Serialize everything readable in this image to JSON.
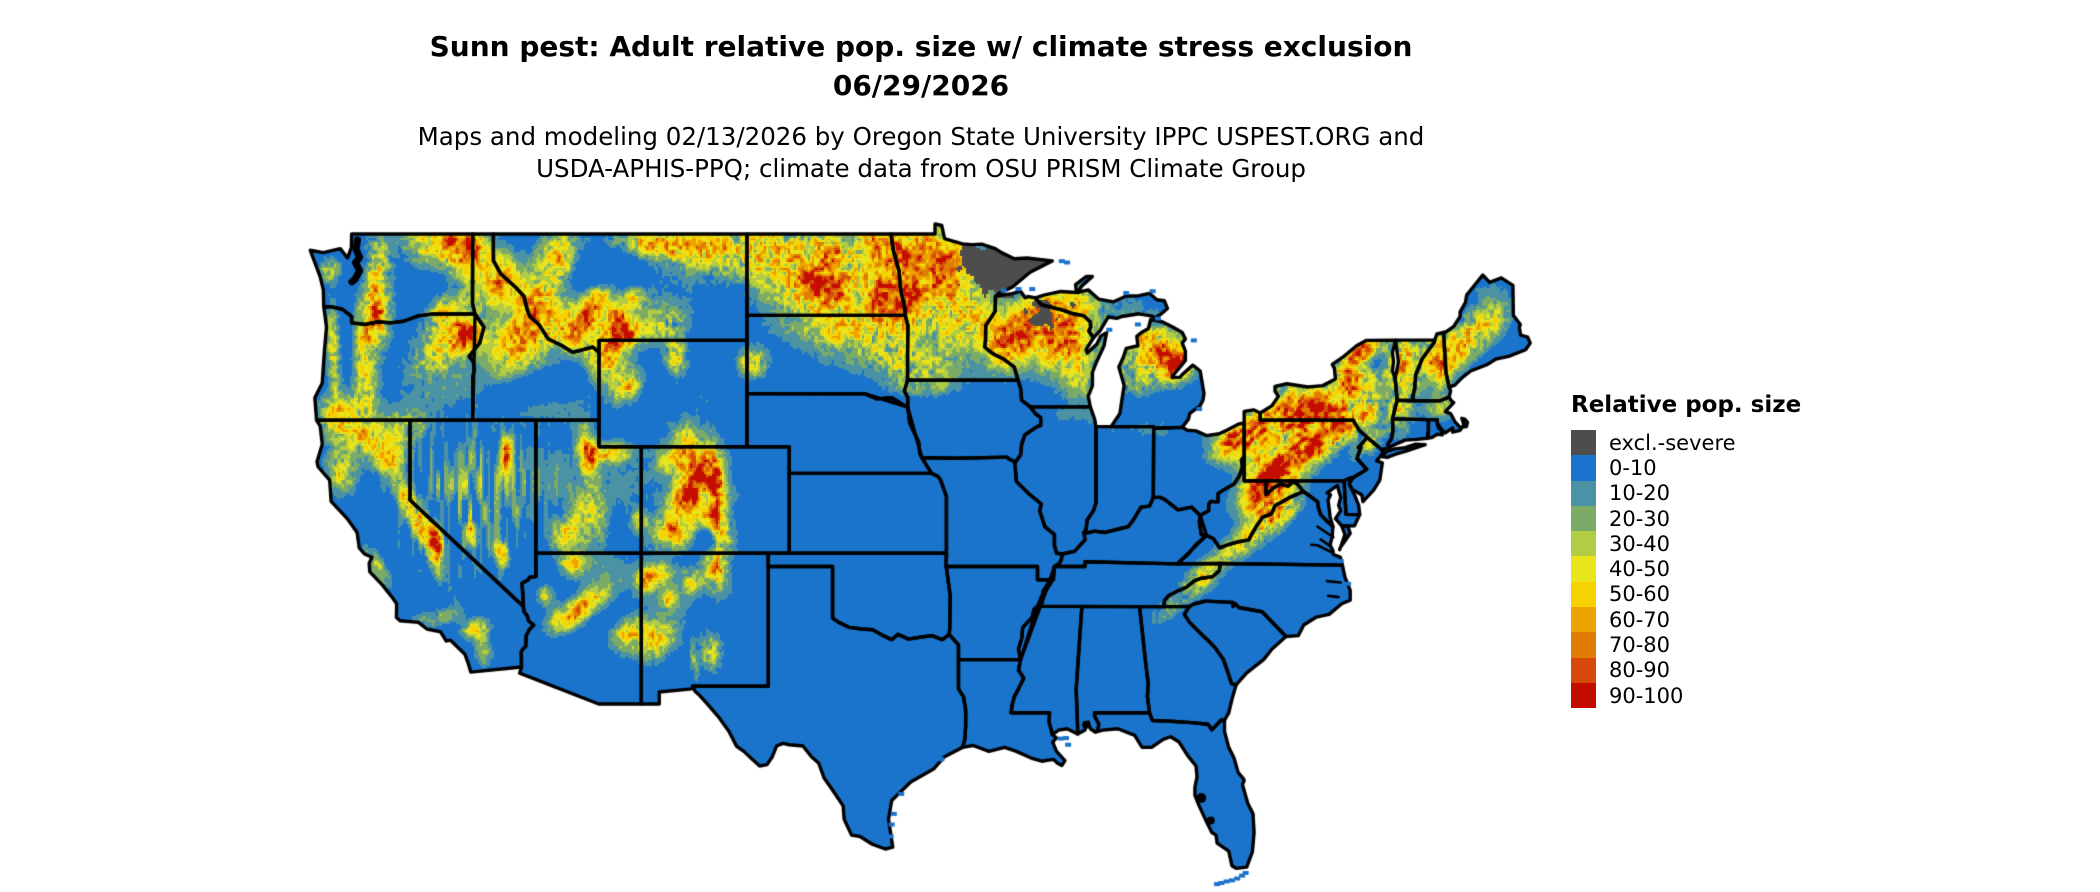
{
  "header": {
    "title": "Sunn pest: Adult relative pop. size w/ climate stress exclusion",
    "date": "06/29/2026",
    "caption_line1": "Maps and modeling 02/13/2026 by Oregon State University IPPC USPEST.ORG and",
    "caption_line2": "USDA-APHIS-PPQ; climate data from OSU PRISM Climate Group"
  },
  "legend": {
    "title": "Relative pop. size",
    "items": [
      {
        "label": "excl.-severe",
        "color": "#4d4d4d"
      },
      {
        "label": "0-10",
        "color": "#1b74cc"
      },
      {
        "label": "10-20",
        "color": "#4a92a4"
      },
      {
        "label": "20-30",
        "color": "#7cab68"
      },
      {
        "label": "30-40",
        "color": "#b2cc43"
      },
      {
        "label": "40-50",
        "color": "#e8e41e"
      },
      {
        "label": "50-60",
        "color": "#f6d200"
      },
      {
        "label": "60-70",
        "color": "#eda300"
      },
      {
        "label": "70-80",
        "color": "#e17c00"
      },
      {
        "label": "80-90",
        "color": "#d6490b"
      },
      {
        "label": "90-100",
        "color": "#c40d00"
      }
    ]
  },
  "map": {
    "background": "#ffffff",
    "border_color": "#000000"
  }
}
